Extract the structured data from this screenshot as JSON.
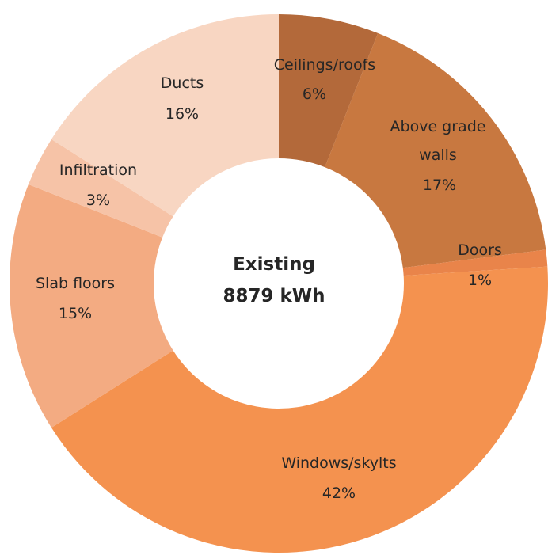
{
  "chart_data": {
    "type": "pie",
    "donut": true,
    "center_label": {
      "line1": "Existing",
      "line2": "8879 kWh"
    },
    "slices": [
      {
        "name": "Ceilings/roofs",
        "value": 6,
        "label": "6%",
        "color": "#b3693a"
      },
      {
        "name": "Above grade walls",
        "value": 17,
        "label": "17%",
        "color": "#c87840"
      },
      {
        "name": "Doors",
        "value": 1,
        "label": "1%",
        "color": "#e9844a"
      },
      {
        "name": "Windows/skylts",
        "value": 42,
        "label": "42%",
        "color": "#f4924f"
      },
      {
        "name": "Slab floors",
        "value": 15,
        "label": "15%",
        "color": "#f3ab82"
      },
      {
        "name": "Infiltration",
        "value": 3,
        "label": "3%",
        "color": "#f6c3a7"
      },
      {
        "name": "Ducts",
        "value": 16,
        "label": "16%",
        "color": "#f8d6c2"
      }
    ],
    "legend": "none",
    "grid": false
  }
}
